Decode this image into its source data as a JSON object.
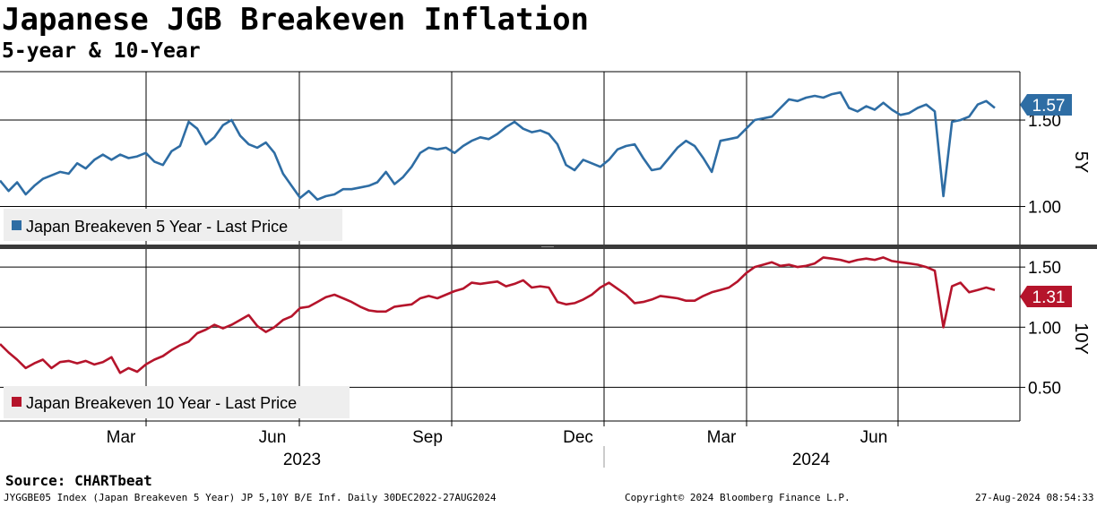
{
  "header": {
    "title": "Japanese JGB Breakeven Inflation",
    "subtitle": "5-year & 10-Year"
  },
  "footer": {
    "source": "Source: CHARTbeat",
    "index_info": "JYGGBE05 Index (Japan Breakeven 5 Year) JP 5,10Y B/E Inf.  Daily 30DEC2022-27AUG2024",
    "copyright": "Copyright© 2024 Bloomberg Finance L.P.",
    "timestamp": "27-Aug-2024 08:54:33"
  },
  "colors": {
    "five_year": "#2e6da4",
    "ten_year": "#b5142b",
    "grid": "#000000"
  },
  "chart_data": [
    {
      "type": "line",
      "panel": "top",
      "axis_label": "5Y",
      "series_name": "Japan Breakeven 5 Year - Last Price",
      "last_value": 1.57,
      "last_value_label": "1.57",
      "yticks": [
        1.0,
        1.5
      ],
      "ytick_labels": [
        "1.00",
        "1.50"
      ],
      "ylim": [
        0.78,
        1.78
      ],
      "points": [
        [
          0,
          1.15
        ],
        [
          1,
          1.09
        ],
        [
          2,
          1.14
        ],
        [
          3,
          1.07
        ],
        [
          4,
          1.12
        ],
        [
          5,
          1.16
        ],
        [
          6,
          1.18
        ],
        [
          7,
          1.2
        ],
        [
          8,
          1.19
        ],
        [
          9,
          1.25
        ],
        [
          10,
          1.22
        ],
        [
          11,
          1.27
        ],
        [
          12,
          1.3
        ],
        [
          13,
          1.27
        ],
        [
          14,
          1.3
        ],
        [
          15,
          1.28
        ],
        [
          16,
          1.29
        ],
        [
          17,
          1.31
        ],
        [
          18,
          1.26
        ],
        [
          19,
          1.24
        ],
        [
          20,
          1.32
        ],
        [
          21,
          1.35
        ],
        [
          22,
          1.49
        ],
        [
          23,
          1.45
        ],
        [
          24,
          1.36
        ],
        [
          25,
          1.4
        ],
        [
          26,
          1.47
        ],
        [
          27,
          1.5
        ],
        [
          28,
          1.41
        ],
        [
          29,
          1.36
        ],
        [
          30,
          1.34
        ],
        [
          31,
          1.37
        ],
        [
          32,
          1.31
        ],
        [
          33,
          1.19
        ],
        [
          34,
          1.12
        ],
        [
          35,
          1.05
        ],
        [
          36,
          1.09
        ],
        [
          37,
          1.04
        ],
        [
          38,
          1.06
        ],
        [
          39,
          1.07
        ],
        [
          40,
          1.1
        ],
        [
          41,
          1.1
        ],
        [
          42,
          1.11
        ],
        [
          43,
          1.12
        ],
        [
          44,
          1.14
        ],
        [
          45,
          1.2
        ],
        [
          46,
          1.13
        ],
        [
          47,
          1.17
        ],
        [
          48,
          1.23
        ],
        [
          49,
          1.31
        ],
        [
          50,
          1.34
        ],
        [
          51,
          1.33
        ],
        [
          52,
          1.34
        ],
        [
          53,
          1.31
        ],
        [
          54,
          1.35
        ],
        [
          55,
          1.38
        ],
        [
          56,
          1.4
        ],
        [
          57,
          1.39
        ],
        [
          58,
          1.42
        ],
        [
          59,
          1.46
        ],
        [
          60,
          1.49
        ],
        [
          61,
          1.45
        ],
        [
          62,
          1.43
        ],
        [
          63,
          1.44
        ],
        [
          64,
          1.42
        ],
        [
          65,
          1.36
        ],
        [
          66,
          1.24
        ],
        [
          67,
          1.21
        ],
        [
          68,
          1.27
        ],
        [
          69,
          1.25
        ],
        [
          70,
          1.23
        ],
        [
          71,
          1.27
        ],
        [
          72,
          1.33
        ],
        [
          73,
          1.35
        ],
        [
          74,
          1.36
        ],
        [
          75,
          1.28
        ],
        [
          76,
          1.21
        ],
        [
          77,
          1.22
        ],
        [
          78,
          1.28
        ],
        [
          79,
          1.34
        ],
        [
          80,
          1.38
        ],
        [
          81,
          1.35
        ],
        [
          82,
          1.28
        ],
        [
          83,
          1.2
        ],
        [
          84,
          1.38
        ],
        [
          85,
          1.39
        ],
        [
          86,
          1.4
        ],
        [
          87,
          1.45
        ],
        [
          88,
          1.5
        ],
        [
          89,
          1.51
        ],
        [
          90,
          1.52
        ],
        [
          91,
          1.57
        ],
        [
          92,
          1.62
        ],
        [
          93,
          1.61
        ],
        [
          94,
          1.63
        ],
        [
          95,
          1.64
        ],
        [
          96,
          1.63
        ],
        [
          97,
          1.65
        ],
        [
          98,
          1.66
        ],
        [
          99,
          1.57
        ],
        [
          100,
          1.55
        ],
        [
          101,
          1.58
        ],
        [
          102,
          1.56
        ],
        [
          103,
          1.6
        ],
        [
          104,
          1.56
        ],
        [
          105,
          1.53
        ],
        [
          106,
          1.54
        ],
        [
          107,
          1.57
        ],
        [
          108,
          1.59
        ],
        [
          109,
          1.55
        ],
        [
          110,
          1.06
        ],
        [
          111,
          1.49
        ],
        [
          112,
          1.5
        ],
        [
          113,
          1.52
        ],
        [
          114,
          1.59
        ],
        [
          115,
          1.61
        ],
        [
          116,
          1.57
        ]
      ]
    },
    {
      "type": "line",
      "panel": "bottom",
      "axis_label": "10Y",
      "series_name": "Japan Breakeven 10 Year - Last Price",
      "last_value": 1.31,
      "last_value_label": "1.31",
      "yticks": [
        0.5,
        1.0,
        1.5
      ],
      "ytick_labels": [
        "0.50",
        "1.00",
        "1.50"
      ],
      "ylim": [
        0.22,
        1.65
      ],
      "points": [
        [
          0,
          0.86
        ],
        [
          1,
          0.79
        ],
        [
          2,
          0.73
        ],
        [
          3,
          0.66
        ],
        [
          4,
          0.7
        ],
        [
          5,
          0.73
        ],
        [
          6,
          0.66
        ],
        [
          7,
          0.71
        ],
        [
          8,
          0.72
        ],
        [
          9,
          0.7
        ],
        [
          10,
          0.72
        ],
        [
          11,
          0.69
        ],
        [
          12,
          0.71
        ],
        [
          13,
          0.75
        ],
        [
          14,
          0.62
        ],
        [
          15,
          0.66
        ],
        [
          16,
          0.63
        ],
        [
          17,
          0.69
        ],
        [
          18,
          0.73
        ],
        [
          19,
          0.76
        ],
        [
          20,
          0.81
        ],
        [
          21,
          0.85
        ],
        [
          22,
          0.88
        ],
        [
          23,
          0.95
        ],
        [
          24,
          0.98
        ],
        [
          25,
          1.02
        ],
        [
          26,
          0.99
        ],
        [
          27,
          1.02
        ],
        [
          28,
          1.06
        ],
        [
          29,
          1.1
        ],
        [
          30,
          1.01
        ],
        [
          31,
          0.96
        ],
        [
          32,
          1.0
        ],
        [
          33,
          1.06
        ],
        [
          34,
          1.09
        ],
        [
          35,
          1.16
        ],
        [
          36,
          1.17
        ],
        [
          37,
          1.21
        ],
        [
          38,
          1.25
        ],
        [
          39,
          1.27
        ],
        [
          40,
          1.24
        ],
        [
          41,
          1.21
        ],
        [
          42,
          1.17
        ],
        [
          43,
          1.14
        ],
        [
          44,
          1.13
        ],
        [
          45,
          1.13
        ],
        [
          46,
          1.17
        ],
        [
          47,
          1.18
        ],
        [
          48,
          1.19
        ],
        [
          49,
          1.24
        ],
        [
          50,
          1.26
        ],
        [
          51,
          1.24
        ],
        [
          52,
          1.27
        ],
        [
          53,
          1.3
        ],
        [
          54,
          1.32
        ],
        [
          55,
          1.37
        ],
        [
          56,
          1.36
        ],
        [
          57,
          1.37
        ],
        [
          58,
          1.38
        ],
        [
          59,
          1.34
        ],
        [
          60,
          1.36
        ],
        [
          61,
          1.39
        ],
        [
          62,
          1.33
        ],
        [
          63,
          1.34
        ],
        [
          64,
          1.33
        ],
        [
          65,
          1.21
        ],
        [
          66,
          1.19
        ],
        [
          67,
          1.2
        ],
        [
          68,
          1.23
        ],
        [
          69,
          1.27
        ],
        [
          70,
          1.33
        ],
        [
          71,
          1.37
        ],
        [
          72,
          1.32
        ],
        [
          73,
          1.27
        ],
        [
          74,
          1.2
        ],
        [
          75,
          1.21
        ],
        [
          76,
          1.23
        ],
        [
          77,
          1.26
        ],
        [
          78,
          1.25
        ],
        [
          79,
          1.24
        ],
        [
          80,
          1.22
        ],
        [
          81,
          1.22
        ],
        [
          82,
          1.26
        ],
        [
          83,
          1.29
        ],
        [
          84,
          1.31
        ],
        [
          85,
          1.33
        ],
        [
          86,
          1.38
        ],
        [
          87,
          1.45
        ],
        [
          88,
          1.5
        ],
        [
          89,
          1.52
        ],
        [
          90,
          1.54
        ],
        [
          91,
          1.51
        ],
        [
          92,
          1.52
        ],
        [
          93,
          1.5
        ],
        [
          94,
          1.51
        ],
        [
          95,
          1.53
        ],
        [
          96,
          1.58
        ],
        [
          97,
          1.57
        ],
        [
          98,
          1.56
        ],
        [
          99,
          1.54
        ],
        [
          100,
          1.56
        ],
        [
          101,
          1.57
        ],
        [
          102,
          1.56
        ],
        [
          103,
          1.58
        ],
        [
          104,
          1.55
        ],
        [
          105,
          1.54
        ],
        [
          106,
          1.53
        ],
        [
          107,
          1.52
        ],
        [
          108,
          1.5
        ],
        [
          109,
          1.47
        ],
        [
          110,
          1.0
        ],
        [
          111,
          1.34
        ],
        [
          112,
          1.37
        ],
        [
          113,
          1.29
        ],
        [
          114,
          1.31
        ],
        [
          115,
          1.33
        ],
        [
          116,
          1.31
        ]
      ]
    }
  ],
  "x_axis": {
    "months": [
      "Mar",
      "Jun",
      "Sep",
      "Dec",
      "Mar",
      "Jun"
    ],
    "years": [
      "2023",
      "2024"
    ]
  }
}
